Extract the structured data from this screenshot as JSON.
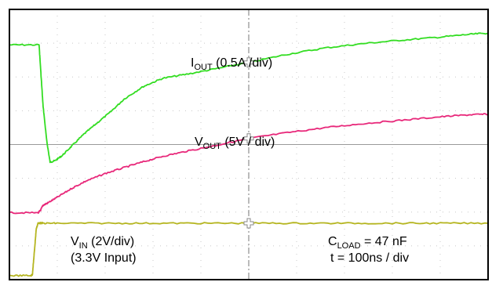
{
  "chart_data": {
    "type": "line",
    "x_unit": "div",
    "y_unit": "div",
    "xlim": [
      0,
      10
    ],
    "ylim": [
      -4,
      4
    ],
    "grid": true,
    "series": [
      {
        "color": "#33dd22",
        "x": [
          0,
          0.62,
          0.64,
          0.7,
          0.78,
          0.85,
          0.95,
          1.1,
          1.3,
          1.55,
          1.8,
          2.1,
          2.4,
          2.8,
          3.2,
          3.7,
          4.3,
          5.0,
          5.8,
          6.6,
          7.4,
          8.2,
          9.0,
          9.6,
          10.0
        ],
        "y": [
          2.95,
          2.95,
          2.5,
          1.2,
          0.1,
          -0.52,
          -0.48,
          -0.33,
          -0.05,
          0.3,
          0.6,
          0.95,
          1.35,
          1.72,
          1.96,
          2.08,
          2.24,
          2.43,
          2.67,
          2.86,
          2.99,
          3.09,
          3.18,
          3.26,
          3.3
        ]
      },
      {
        "color": "#e8287a",
        "x": [
          0,
          0.6,
          0.65,
          0.7,
          0.8,
          1.0,
          1.3,
          1.6,
          2.0,
          2.4,
          2.8,
          3.2,
          3.7,
          4.3,
          5.0,
          5.8,
          6.6,
          7.4,
          8.2,
          9.0,
          9.6,
          10.0
        ],
        "y": [
          -2.02,
          -2.02,
          -1.95,
          -1.8,
          -1.73,
          -1.56,
          -1.3,
          -1.08,
          -0.86,
          -0.68,
          -0.51,
          -0.35,
          -0.2,
          -0.03,
          0.18,
          0.35,
          0.5,
          0.62,
          0.72,
          0.82,
          0.88,
          0.9
        ]
      },
      {
        "color": "#b5b520",
        "x": [
          0,
          0.45,
          0.48,
          0.52,
          0.56,
          0.6,
          0.7,
          1.0,
          2.0,
          3.0,
          4.0,
          5.0,
          6.0,
          7.0,
          8.0,
          9.0,
          10.0
        ],
        "y": [
          -3.88,
          -3.88,
          -3.85,
          -3.2,
          -2.5,
          -2.32,
          -2.33,
          -2.33,
          -2.33,
          -2.33,
          -2.33,
          -2.33,
          -2.33,
          -2.33,
          -2.33,
          -2.33,
          -2.33
        ]
      }
    ],
    "labels": {
      "iout": {
        "main": "I",
        "sub": "OUT",
        "rest": " (0.5A /div)"
      },
      "vout": {
        "main": "V",
        "sub": "OUT",
        "rest": " (5V / div)"
      },
      "vin_line1": {
        "main": "V",
        "sub": "IN",
        "rest": " (2V/div)"
      },
      "vin_line2": "(3.3V Input)",
      "cload": {
        "main": "C",
        "sub": "LOAD",
        "rest": " = 47 nF"
      },
      "timebase": "t = 100ns / div"
    }
  }
}
